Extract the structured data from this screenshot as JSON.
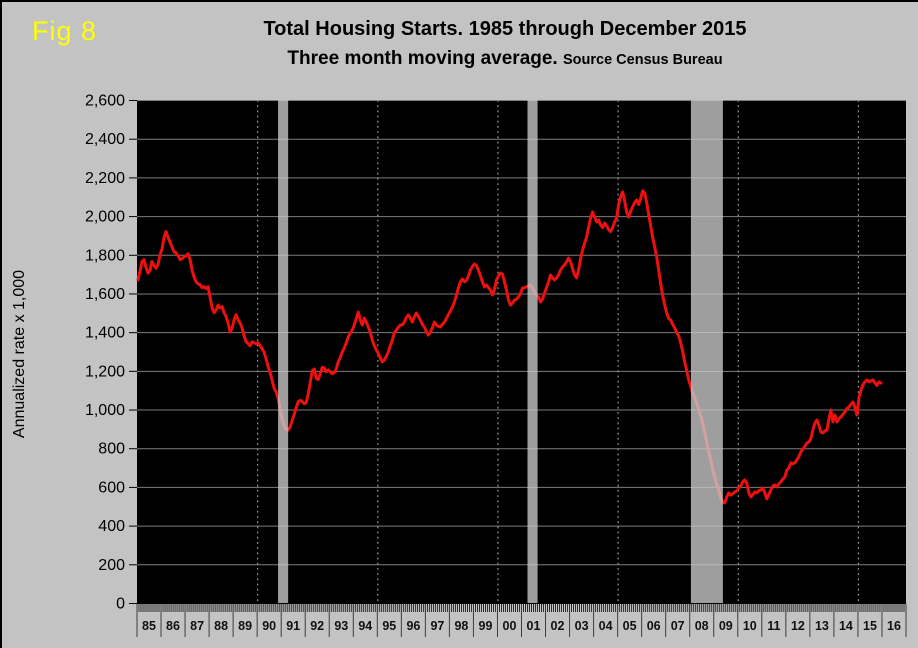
{
  "figure_label": "Fig 8",
  "title": {
    "line1": "Total Housing Starts. 1985 through December 2015",
    "line2": "Three month moving average.",
    "source": "Source Census Bureau"
  },
  "y_axis": {
    "title": "Annualized rate x 1,000",
    "min": 0,
    "max": 2600,
    "step": 200,
    "tick_labels": [
      "0",
      "200",
      "400",
      "600",
      "800",
      "1,000",
      "1,200",
      "1,400",
      "1,600",
      "1,800",
      "2,000",
      "2,200",
      "2,400",
      "2,600"
    ]
  },
  "x_axis": {
    "start_year": 1985,
    "cells": 32,
    "labels": [
      "85",
      "86",
      "87",
      "88",
      "89",
      "90",
      "91",
      "92",
      "93",
      "94",
      "95",
      "96",
      "97",
      "98",
      "99",
      "00",
      "01",
      "02",
      "03",
      "04",
      "05",
      "06",
      "07",
      "08",
      "09",
      "10",
      "11",
      "12",
      "13",
      "14",
      "15",
      "16"
    ]
  },
  "chart_data": {
    "type": "line",
    "title": "Total Housing Starts. 1985 through December 2015",
    "subtitle": "Three month moving average. Source Census Bureau",
    "ylabel": "Annualized rate x 1,000",
    "ylim": [
      0,
      2600
    ],
    "xlim_years": [
      1985,
      2017
    ],
    "x_start": "1985-01",
    "x_interval": "monthly",
    "grid": {
      "horizontal": "solid gray on black",
      "vertical": "dashed at 5-year marks"
    },
    "dashed_gridline_years": [
      1990,
      1995,
      2000,
      2005,
      2010,
      2015
    ],
    "recession_bands": [
      {
        "start_year": 1990.87,
        "end_year": 1991.29
      },
      {
        "start_year": 2001.25,
        "end_year": 2001.67
      },
      {
        "start_year": 2008.05,
        "end_year": 2009.38
      }
    ],
    "series": [
      {
        "name": "Total housing starts, 3-month moving average",
        "color": "#ee0f0f",
        "values": [
          1670,
          1715,
          1765,
          1775,
          1735,
          1705,
          1720,
          1765,
          1745,
          1730,
          1750,
          1800,
          1830,
          1890,
          1920,
          1890,
          1865,
          1840,
          1815,
          1810,
          1795,
          1775,
          1780,
          1790,
          1795,
          1805,
          1775,
          1720,
          1685,
          1660,
          1650,
          1645,
          1630,
          1635,
          1625,
          1635,
          1580,
          1525,
          1500,
          1515,
          1540,
          1525,
          1532,
          1500,
          1480,
          1447,
          1400,
          1420,
          1465,
          1490,
          1463,
          1447,
          1421,
          1380,
          1350,
          1340,
          1330,
          1350,
          1345,
          1340,
          1345,
          1330,
          1315,
          1295,
          1260,
          1220,
          1190,
          1150,
          1110,
          1090,
          1055,
          1000,
          950,
          915,
          897,
          894,
          910,
          945,
          975,
          1010,
          1040,
          1048,
          1042,
          1030,
          1035,
          1080,
          1140,
          1200,
          1210,
          1160,
          1155,
          1185,
          1218,
          1215,
          1195,
          1205,
          1194,
          1185,
          1190,
          1210,
          1246,
          1270,
          1298,
          1318,
          1345,
          1375,
          1395,
          1411,
          1437,
          1470,
          1504,
          1463,
          1437,
          1473,
          1452,
          1427,
          1400,
          1359,
          1330,
          1308,
          1290,
          1266,
          1246,
          1256,
          1275,
          1298,
          1330,
          1359,
          1396,
          1411,
          1425,
          1437,
          1437,
          1452,
          1475,
          1489,
          1473,
          1452,
          1480,
          1499,
          1482,
          1463,
          1440,
          1427,
          1401,
          1385,
          1400,
          1422,
          1452,
          1437,
          1430,
          1427,
          1440,
          1452,
          1470,
          1490,
          1510,
          1530,
          1556,
          1590,
          1630,
          1660,
          1675,
          1660,
          1668,
          1690,
          1721,
          1740,
          1752,
          1745,
          1721,
          1690,
          1660,
          1634,
          1644,
          1630,
          1618,
          1592,
          1620,
          1670,
          1690,
          1706,
          1700,
          1660,
          1618,
          1566,
          1540,
          1550,
          1566,
          1570,
          1582,
          1600,
          1628,
          1630,
          1634,
          1640,
          1644,
          1628,
          1608,
          1590,
          1582,
          1556,
          1570,
          1602,
          1630,
          1660,
          1696,
          1680,
          1670,
          1680,
          1696,
          1721,
          1737,
          1747,
          1763,
          1783,
          1763,
          1730,
          1696,
          1680,
          1720,
          1780,
          1825,
          1860,
          1890,
          1943,
          1990,
          2021,
          1995,
          1970,
          1980,
          1955,
          1940,
          1964,
          1950,
          1930,
          1920,
          1940,
          1970,
          1990,
          2060,
          2100,
          2125,
          2080,
          2020,
          1995,
          2025,
          2047,
          2070,
          2083,
          2060,
          2090,
          2130,
          2120,
          2070,
          2010,
          1950,
          1890,
          1840,
          1790,
          1720,
          1650,
          1590,
          1540,
          1500,
          1470,
          1463,
          1440,
          1421,
          1400,
          1380,
          1344,
          1300,
          1246,
          1200,
          1153,
          1120,
          1086,
          1060,
          1034,
          1000,
          965,
          930,
          880,
          827,
          780,
          739,
          690,
          651,
          610,
          584,
          545,
          520,
          517,
          548,
          569,
          558,
          565,
          574,
          580,
          595,
          605,
          626,
          636,
          620,
          570,
          548,
          560,
          574,
          569,
          580,
          584,
          595,
          570,
          538,
          560,
          584,
          605,
          610,
          600,
          615,
          626,
          640,
          651,
          687,
          698,
          724,
          720,
          724,
          740,
          755,
          781,
          795,
          810,
          827,
          832,
          850,
          894,
          930,
          946,
          920,
          884,
          879,
          890,
          894,
          950,
          998,
          936,
          972,
          936,
          952,
          962,
          975,
          988,
          1005,
          1013,
          1028,
          1039,
          1010,
          972,
          1060,
          1100,
          1127,
          1143,
          1153,
          1143,
          1148,
          1153,
          1137,
          1125,
          1143,
          1137
        ]
      }
    ]
  },
  "colors": {
    "background": "#c3c3c3",
    "plot_background": "#000000",
    "line": "#ee0f0f",
    "gridline": "#7d7d7d",
    "dashed_gridline": "#999999",
    "recession_band": "rgba(202,202,202,0.78)",
    "figure_label": "#ffff00",
    "text": "#000000"
  }
}
